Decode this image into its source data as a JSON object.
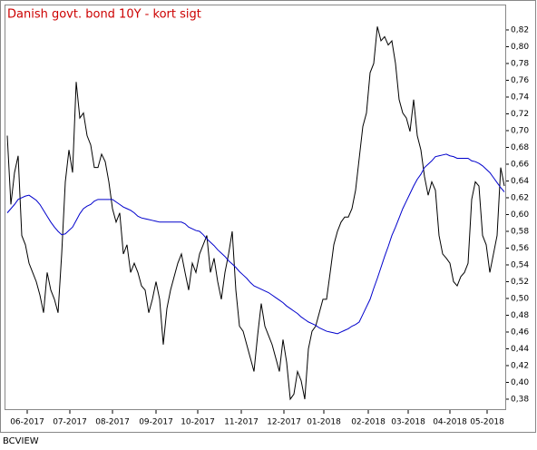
{
  "chart_data": {
    "type": "line",
    "title": "Danish govt. bond 10Y - kort sigt",
    "footer": "BCVIEW",
    "xlim": [
      0,
      137
    ],
    "xticks": [
      {
        "value": 5.5,
        "label": "06-2017"
      },
      {
        "value": 17.25,
        "label": "07-2017"
      },
      {
        "value": 29,
        "label": "08-2017"
      },
      {
        "value": 41,
        "label": "09-2017"
      },
      {
        "value": 52.5,
        "label": "10-2017"
      },
      {
        "value": 64.5,
        "label": "11-2017"
      },
      {
        "value": 76.25,
        "label": "12-2017"
      },
      {
        "value": 87.25,
        "label": "01-2018"
      },
      {
        "value": 99.5,
        "label": "02-2018"
      },
      {
        "value": 110.5,
        "label": "03-2018"
      },
      {
        "value": 122,
        "label": "04-2018"
      },
      {
        "value": 132.25,
        "label": "05-2018"
      }
    ],
    "ylim": [
      0.367,
      0.847
    ],
    "yticks": [
      {
        "value": 0.38,
        "label": "0,38"
      },
      {
        "value": 0.4,
        "label": "0,40"
      },
      {
        "value": 0.42,
        "label": "0,42"
      },
      {
        "value": 0.44,
        "label": "0,44"
      },
      {
        "value": 0.46,
        "label": "0,46"
      },
      {
        "value": 0.48,
        "label": "0,48"
      },
      {
        "value": 0.5,
        "label": "0,50"
      },
      {
        "value": 0.52,
        "label": "0,52"
      },
      {
        "value": 0.54,
        "label": "0,54"
      },
      {
        "value": 0.56,
        "label": "0,56"
      },
      {
        "value": 0.58,
        "label": "0,58"
      },
      {
        "value": 0.6,
        "label": "0,60"
      },
      {
        "value": 0.62,
        "label": "0,62"
      },
      {
        "value": 0.64,
        "label": "0,64"
      },
      {
        "value": 0.66,
        "label": "0,66"
      },
      {
        "value": 0.68,
        "label": "0,68"
      },
      {
        "value": 0.7,
        "label": "0,70"
      },
      {
        "value": 0.72,
        "label": "0,72"
      },
      {
        "value": 0.74,
        "label": "0,74"
      },
      {
        "value": 0.76,
        "label": "0,76"
      },
      {
        "value": 0.78,
        "label": "0,78"
      },
      {
        "value": 0.8,
        "label": "0,80"
      },
      {
        "value": 0.82,
        "label": "0,82"
      }
    ],
    "grid": false,
    "series": [
      {
        "color": "#000000",
        "values": [
          0.694,
          0.612,
          0.65,
          0.67,
          0.575,
          0.564,
          0.542,
          0.531,
          0.52,
          0.504,
          0.483,
          0.531,
          0.51,
          0.499,
          0.483,
          0.553,
          0.639,
          0.677,
          0.65,
          0.758,
          0.715,
          0.721,
          0.694,
          0.683,
          0.656,
          0.656,
          0.672,
          0.663,
          0.639,
          0.607,
          0.591,
          0.602,
          0.553,
          0.564,
          0.531,
          0.542,
          0.531,
          0.515,
          0.51,
          0.483,
          0.499,
          0.52,
          0.499,
          0.445,
          0.488,
          0.51,
          0.526,
          0.542,
          0.553,
          0.531,
          0.51,
          0.542,
          0.531,
          0.553,
          0.564,
          0.575,
          0.531,
          0.548,
          0.52,
          0.499,
          0.531,
          0.553,
          0.58,
          0.51,
          0.467,
          0.461,
          0.445,
          0.429,
          0.413,
          0.456,
          0.494,
          0.467,
          0.456,
          0.445,
          0.429,
          0.413,
          0.451,
          0.424,
          0.38,
          0.386,
          0.413,
          0.402,
          0.38,
          0.44,
          0.461,
          0.467,
          0.483,
          0.499,
          0.499,
          0.531,
          0.564,
          0.58,
          0.591,
          0.597,
          0.597,
          0.607,
          0.629,
          0.667,
          0.705,
          0.721,
          0.769,
          0.78,
          0.824,
          0.807,
          0.812,
          0.802,
          0.807,
          0.78,
          0.737,
          0.721,
          0.715,
          0.699,
          0.737,
          0.694,
          0.677,
          0.645,
          0.623,
          0.639,
          0.629,
          0.575,
          0.553,
          0.548,
          0.542,
          0.52,
          0.515,
          0.526,
          0.531,
          0.542,
          0.618,
          0.639,
          0.634,
          0.575,
          0.564,
          0.531,
          0.553,
          0.575,
          0.656,
          0.634
        ]
      },
      {
        "color": "#0000cc",
        "values": [
          0.602,
          0.607,
          0.612,
          0.618,
          0.62,
          0.622,
          0.623,
          0.62,
          0.617,
          0.612,
          0.605,
          0.598,
          0.591,
          0.585,
          0.58,
          0.576,
          0.577,
          0.581,
          0.585,
          0.593,
          0.601,
          0.607,
          0.61,
          0.612,
          0.616,
          0.618,
          0.618,
          0.618,
          0.618,
          0.618,
          0.615,
          0.612,
          0.609,
          0.607,
          0.605,
          0.602,
          0.598,
          0.596,
          0.595,
          0.594,
          0.593,
          0.592,
          0.591,
          0.591,
          0.591,
          0.591,
          0.591,
          0.591,
          0.591,
          0.589,
          0.585,
          0.583,
          0.581,
          0.58,
          0.576,
          0.571,
          0.567,
          0.563,
          0.558,
          0.554,
          0.55,
          0.545,
          0.541,
          0.537,
          0.532,
          0.528,
          0.524,
          0.519,
          0.515,
          0.513,
          0.511,
          0.509,
          0.507,
          0.504,
          0.501,
          0.498,
          0.495,
          0.491,
          0.488,
          0.485,
          0.482,
          0.478,
          0.475,
          0.472,
          0.47,
          0.468,
          0.465,
          0.463,
          0.461,
          0.46,
          0.459,
          0.458,
          0.46,
          0.462,
          0.464,
          0.467,
          0.469,
          0.472,
          0.481,
          0.49,
          0.499,
          0.512,
          0.524,
          0.537,
          0.55,
          0.562,
          0.575,
          0.585,
          0.596,
          0.607,
          0.616,
          0.625,
          0.634,
          0.642,
          0.648,
          0.656,
          0.66,
          0.664,
          0.669,
          0.67,
          0.671,
          0.672,
          0.67,
          0.669,
          0.667,
          0.667,
          0.667,
          0.667,
          0.664,
          0.663,
          0.661,
          0.658,
          0.654,
          0.65,
          0.644,
          0.638,
          0.632,
          0.627
        ]
      }
    ]
  }
}
